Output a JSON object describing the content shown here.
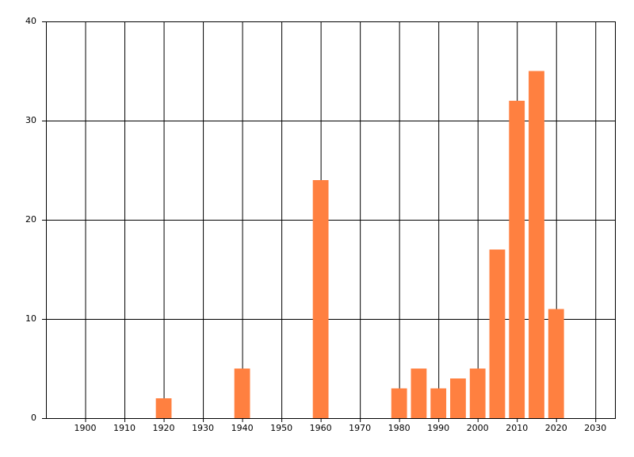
{
  "chart_data": {
    "type": "bar",
    "x": [
      1920,
      1940,
      1960,
      1980,
      1985,
      1990,
      1995,
      2000,
      2005,
      2010,
      2015,
      2020
    ],
    "values": [
      2,
      5,
      24,
      3,
      5,
      3,
      4,
      5,
      17,
      32,
      35,
      11
    ],
    "color": "#ff8040",
    "xlim": [
      1890,
      2035
    ],
    "xticks": [
      1900,
      1910,
      1920,
      1930,
      1940,
      1950,
      1960,
      1970,
      1980,
      1990,
      2000,
      2010,
      2020,
      2030
    ],
    "ylim": [
      0,
      40
    ],
    "yticks": [
      0,
      10,
      20,
      30,
      40
    ],
    "grid": true
  }
}
